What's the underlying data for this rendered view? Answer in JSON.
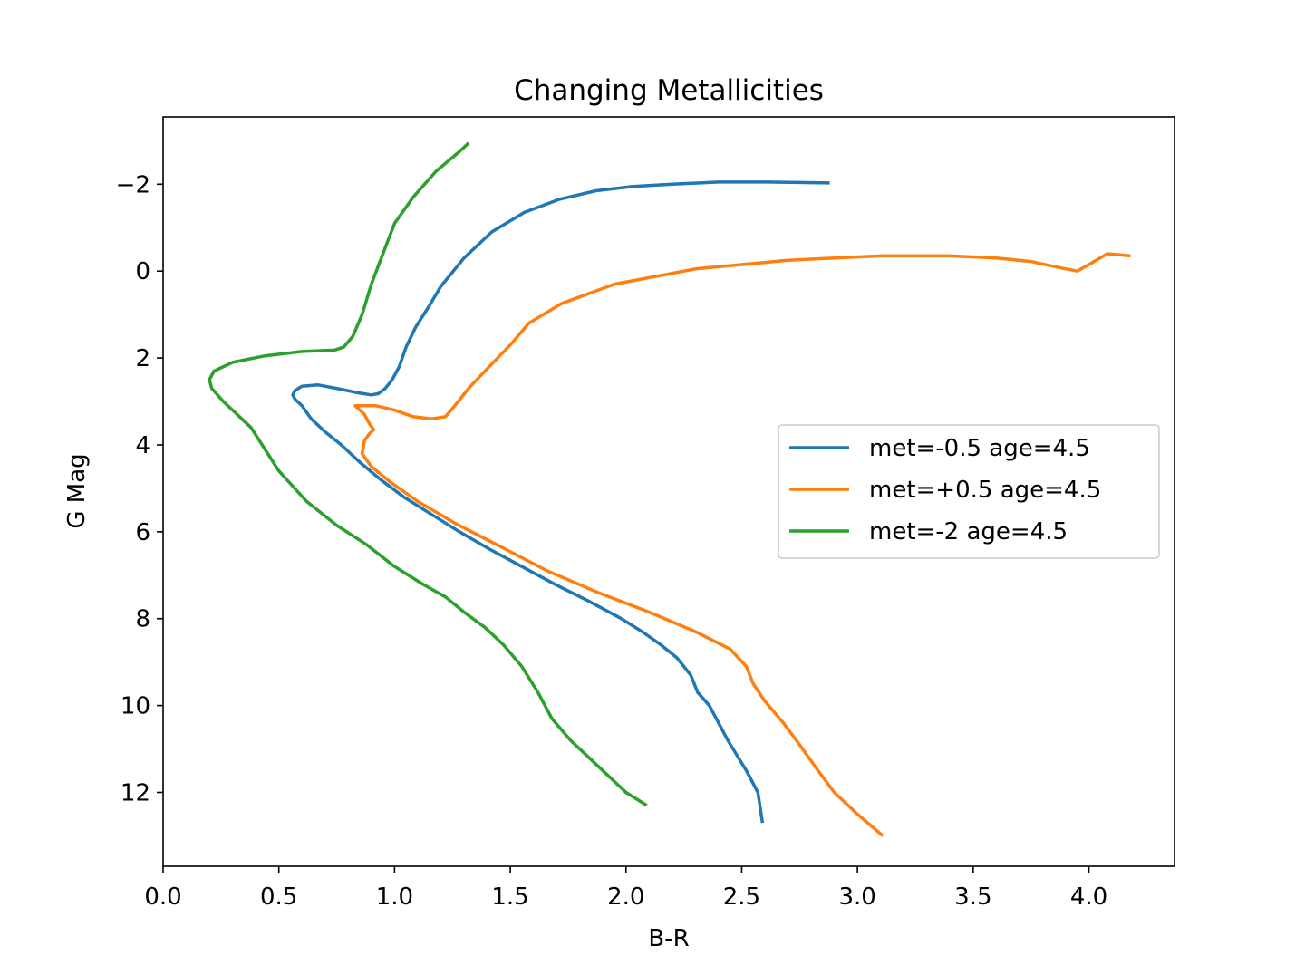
{
  "chart_data": {
    "type": "line",
    "title": "Changing Metallicities",
    "xlabel": "B-R",
    "ylabel": "G Mag",
    "xlim": [
      0.0,
      4.37
    ],
    "ylim": [
      13.7,
      -3.55
    ],
    "y_inverted": true,
    "grid": false,
    "legend_position": "center-right",
    "x_ticks": [
      {
        "value": 0.0,
        "label": "0.0"
      },
      {
        "value": 0.5,
        "label": "0.5"
      },
      {
        "value": 1.0,
        "label": "1.0"
      },
      {
        "value": 1.5,
        "label": "1.5"
      },
      {
        "value": 2.0,
        "label": "2.0"
      },
      {
        "value": 2.5,
        "label": "2.5"
      },
      {
        "value": 3.0,
        "label": "3.0"
      },
      {
        "value": 3.5,
        "label": "3.5"
      },
      {
        "value": 4.0,
        "label": "4.0"
      }
    ],
    "y_ticks": [
      {
        "value": -2,
        "label": "−2"
      },
      {
        "value": 0,
        "label": "0"
      },
      {
        "value": 2,
        "label": "2"
      },
      {
        "value": 4,
        "label": "4"
      },
      {
        "value": 6,
        "label": "6"
      },
      {
        "value": 8,
        "label": "8"
      },
      {
        "value": 10,
        "label": "10"
      },
      {
        "value": 12,
        "label": "12"
      }
    ],
    "series": [
      {
        "name": "met=-0.5 age=4.5",
        "color": "#1f77b4",
        "x": [
          2.59,
          2.57,
          2.52,
          2.44,
          2.36,
          2.31,
          2.28,
          2.22,
          2.15,
          2.07,
          1.98,
          1.84,
          1.69,
          1.55,
          1.41,
          1.28,
          1.16,
          1.04,
          0.94,
          0.85,
          0.77,
          0.7,
          0.64,
          0.6,
          0.57,
          0.56,
          0.57,
          0.6,
          0.67,
          0.75,
          0.84,
          0.9,
          0.93,
          0.96,
          0.99,
          1.02,
          1.05,
          1.09,
          1.15,
          1.2,
          1.3,
          1.42,
          1.56,
          1.71,
          1.87,
          2.03,
          2.2,
          2.4,
          2.6,
          2.75,
          2.88
        ],
        "y": [
          12.7,
          12.0,
          11.5,
          10.8,
          10.0,
          9.7,
          9.3,
          8.9,
          8.6,
          8.3,
          8.0,
          7.6,
          7.2,
          6.8,
          6.4,
          6.0,
          5.6,
          5.2,
          4.8,
          4.4,
          4.0,
          3.7,
          3.4,
          3.1,
          2.95,
          2.85,
          2.75,
          2.65,
          2.62,
          2.7,
          2.8,
          2.85,
          2.82,
          2.7,
          2.5,
          2.2,
          1.75,
          1.3,
          0.8,
          0.35,
          -0.3,
          -0.9,
          -1.35,
          -1.65,
          -1.85,
          -1.95,
          -2.0,
          -2.05,
          -2.05,
          -2.04,
          -2.03
        ]
      },
      {
        "name": "met=+0.5 age=4.5",
        "color": "#ff7f0e",
        "x": [
          3.11,
          3.0,
          2.9,
          2.83,
          2.75,
          2.68,
          2.6,
          2.55,
          2.52,
          2.45,
          2.3,
          2.1,
          1.88,
          1.66,
          1.46,
          1.26,
          1.1,
          0.98,
          0.9,
          0.86,
          0.87,
          0.89,
          0.91,
          0.89,
          0.87,
          0.85,
          0.83,
          0.86,
          0.92,
          1.0,
          1.08,
          1.16,
          1.22,
          1.26,
          1.32,
          1.4,
          1.5,
          1.58,
          1.72,
          1.95,
          2.3,
          2.7,
          3.1,
          3.4,
          3.6,
          3.75,
          3.9,
          3.95,
          4.0,
          4.08,
          4.18
        ],
        "y": [
          13.0,
          12.5,
          12.0,
          11.5,
          10.9,
          10.4,
          9.9,
          9.5,
          9.1,
          8.7,
          8.3,
          7.85,
          7.4,
          6.9,
          6.35,
          5.8,
          5.3,
          4.85,
          4.5,
          4.2,
          3.9,
          3.75,
          3.65,
          3.5,
          3.3,
          3.2,
          3.1,
          3.1,
          3.1,
          3.2,
          3.35,
          3.4,
          3.35,
          3.1,
          2.7,
          2.25,
          1.7,
          1.2,
          0.75,
          0.3,
          -0.05,
          -0.25,
          -0.35,
          -0.35,
          -0.3,
          -0.22,
          -0.05,
          0.0,
          -0.15,
          -0.4,
          -0.35
        ]
      },
      {
        "name": "met=-2 age=4.5",
        "color": "#2ca02c",
        "x": [
          2.09,
          2.0,
          1.88,
          1.76,
          1.68,
          1.62,
          1.55,
          1.47,
          1.39,
          1.3,
          1.22,
          1.12,
          1.0,
          0.88,
          0.75,
          0.62,
          0.5,
          0.38,
          0.26,
          0.21,
          0.2,
          0.22,
          0.3,
          0.44,
          0.6,
          0.74,
          0.78,
          0.82,
          0.86,
          0.9,
          0.95,
          1.0,
          1.08,
          1.18,
          1.28,
          1.32
        ],
        "y": [
          12.3,
          12.0,
          11.4,
          10.8,
          10.3,
          9.7,
          9.1,
          8.6,
          8.2,
          7.85,
          7.5,
          7.2,
          6.8,
          6.3,
          5.85,
          5.3,
          4.6,
          3.6,
          3.0,
          2.7,
          2.5,
          2.3,
          2.1,
          1.95,
          1.85,
          1.82,
          1.75,
          1.5,
          1.0,
          0.3,
          -0.4,
          -1.1,
          -1.7,
          -2.3,
          -2.75,
          -2.95
        ]
      }
    ]
  }
}
